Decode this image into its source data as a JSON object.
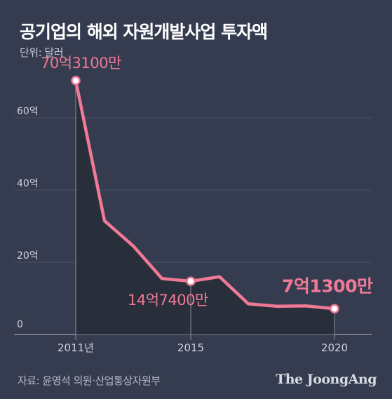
{
  "title": "공기업의 해외 자원개발사업 투자액",
  "unit_label": "단위: 달러",
  "source": "자료: 윤영석 의원·산업통상자원부",
  "brand": "The JoongAng",
  "colors": {
    "background": "#353c4f",
    "line": "#f07a96",
    "area": "#272b37",
    "grid": "#4b5264",
    "axis_text": "#d0d3da"
  },
  "chart_data": {
    "type": "area",
    "title": "공기업의 해외 자원개발사업 투자액",
    "ylabel": "단위: 달러",
    "x": [
      2011,
      2012,
      2013,
      2014,
      2015,
      2016,
      2017,
      2018,
      2019,
      2020
    ],
    "values": [
      70.31,
      31.5,
      24.5,
      15.5,
      14.74,
      16.0,
      8.5,
      7.8,
      7.9,
      7.13
    ],
    "ylim": [
      0,
      80
    ],
    "yticks": [
      0,
      20,
      40,
      60
    ],
    "ytick_labels": [
      "0",
      "20억",
      "40억",
      "60억"
    ],
    "xticks": [
      2011,
      2015,
      2020
    ],
    "xtick_labels": [
      "2011년",
      "2015",
      "2020"
    ],
    "grid": true,
    "annotations": [
      {
        "x": 2011,
        "value": 70.31,
        "text": "70억3100만"
      },
      {
        "x": 2015,
        "value": 14.74,
        "text": "14억7400만"
      },
      {
        "x": 2020,
        "value": 7.13,
        "text": "7억1300만"
      }
    ]
  }
}
